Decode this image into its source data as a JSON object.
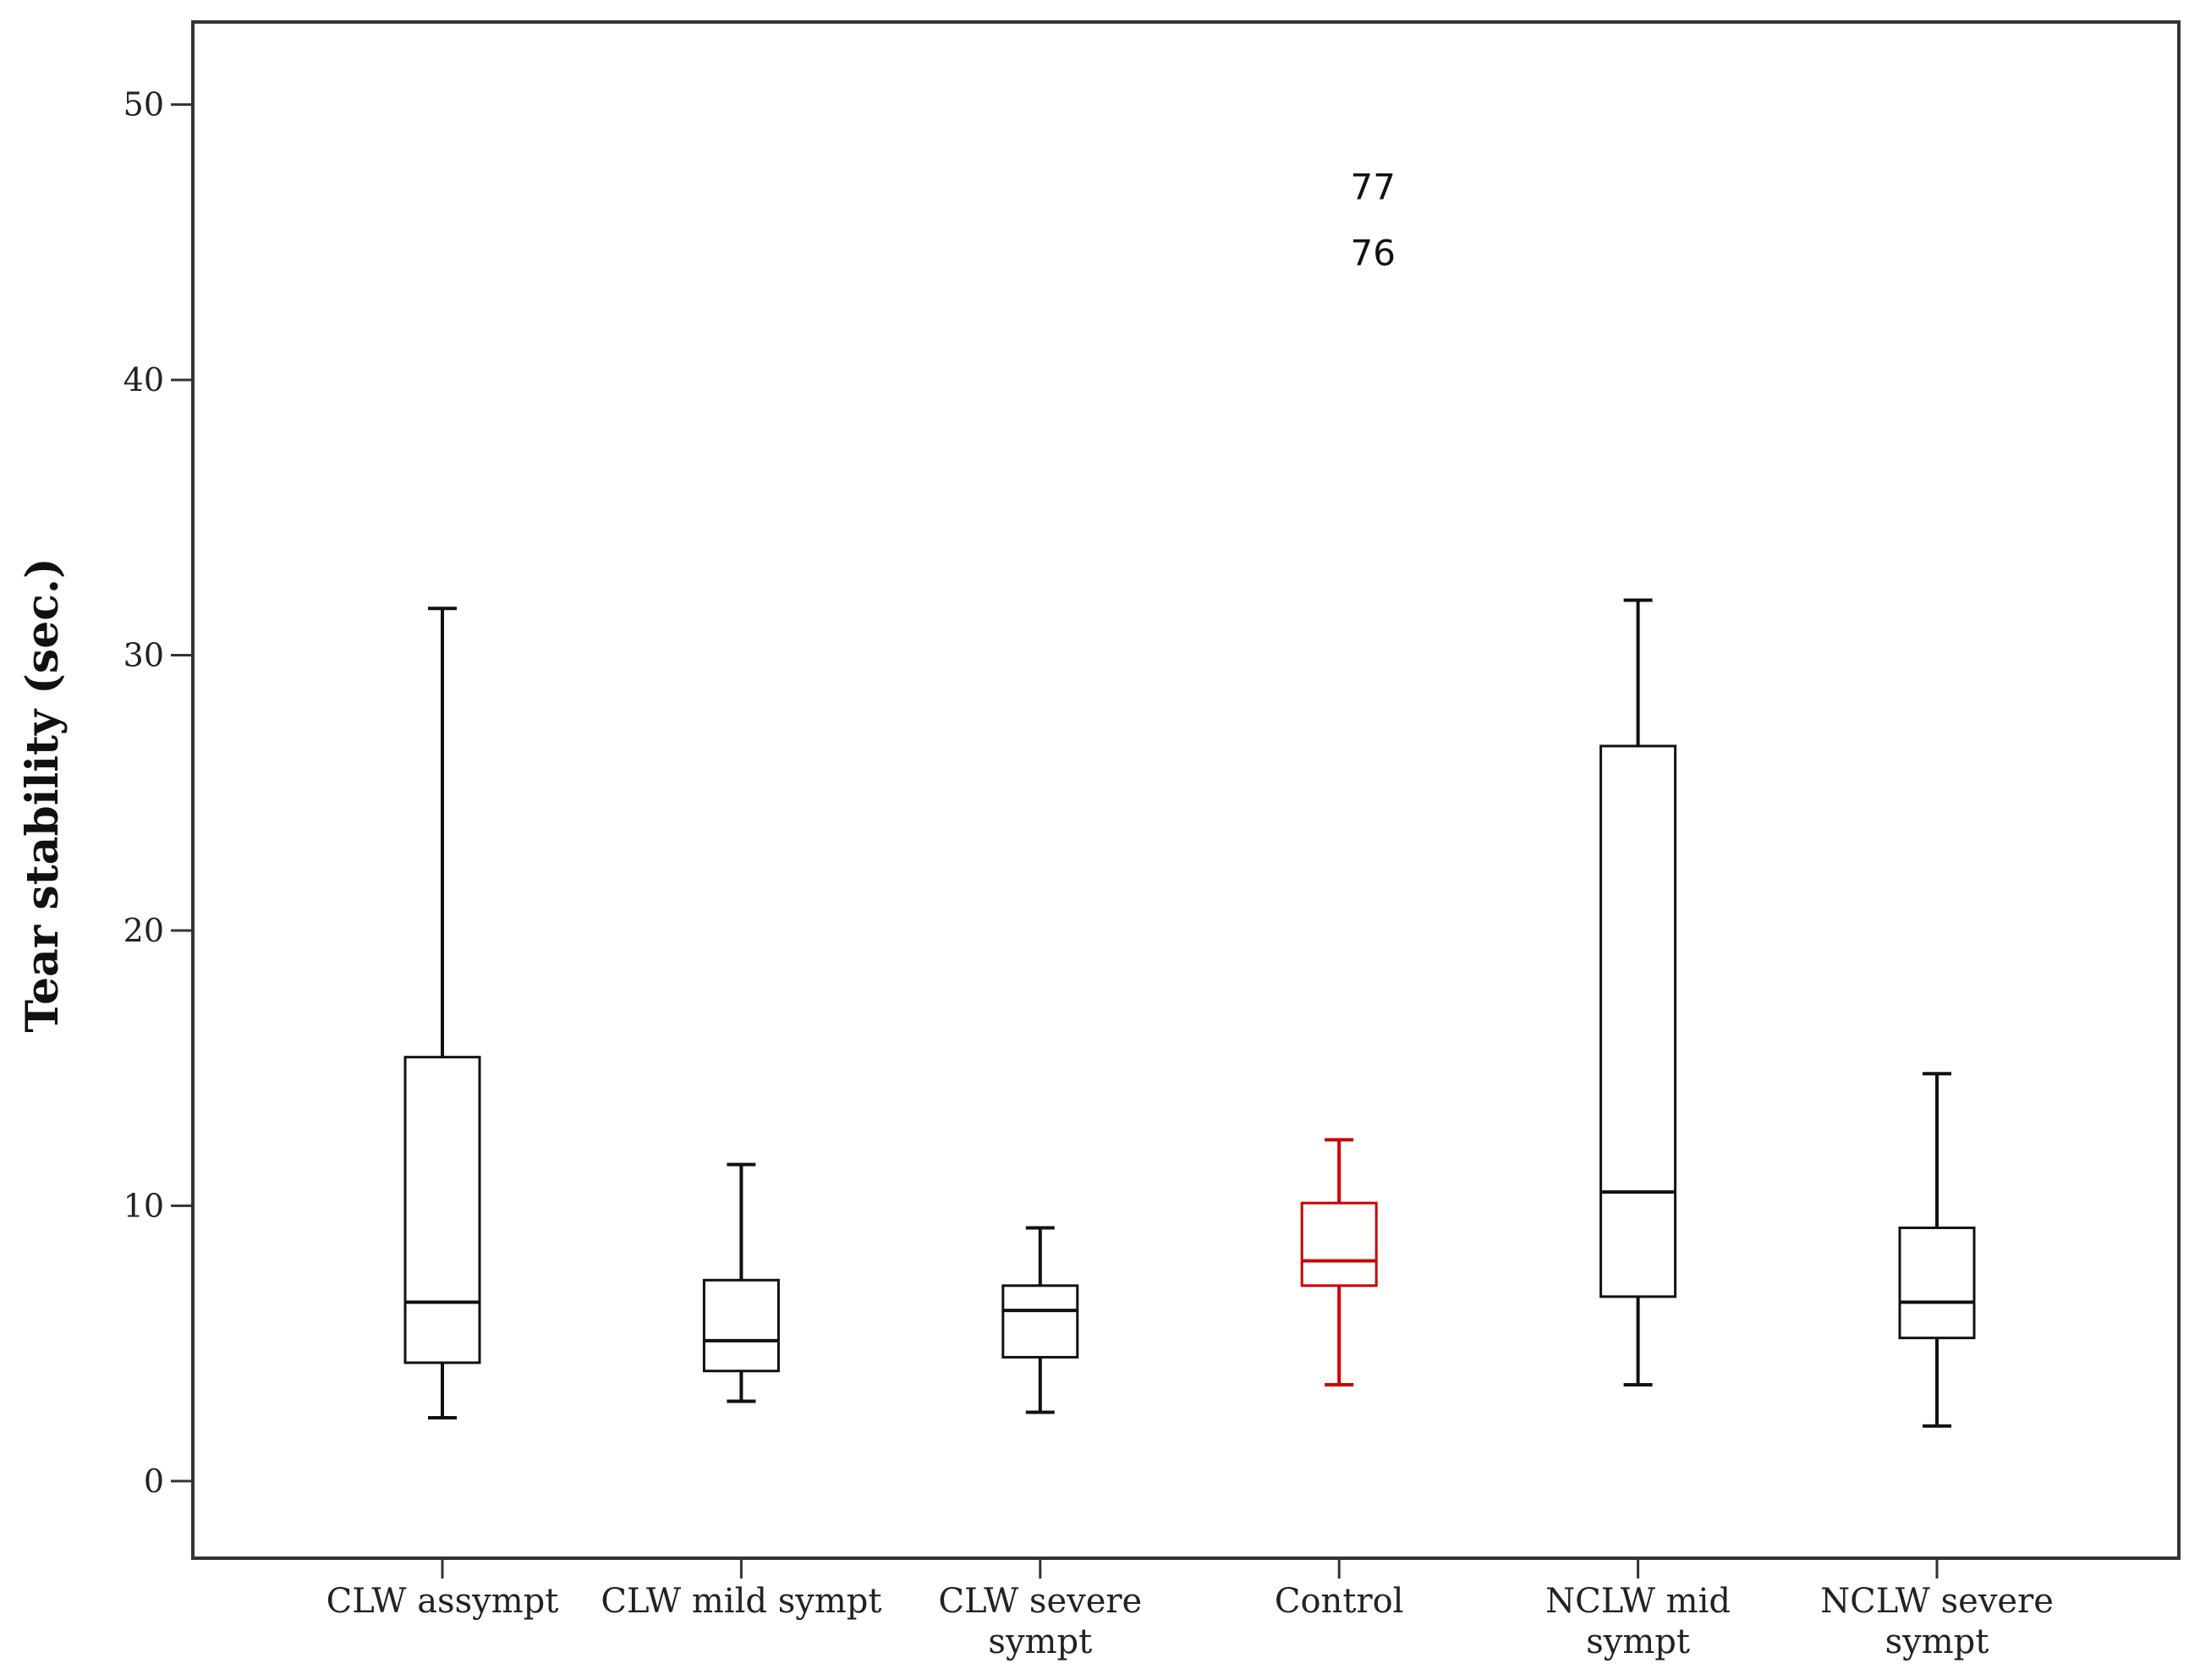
{
  "chart_data": {
    "type": "box",
    "ylabel": "Tear stability (sec.)",
    "xlabel": "",
    "title": "",
    "ylim": [
      -2.8,
      53
    ],
    "yticks": [
      0,
      10,
      20,
      30,
      40,
      50
    ],
    "ytick_labels": [
      "0",
      "10",
      "20",
      "30",
      "40",
      "50"
    ],
    "grid": false,
    "legend": "none",
    "colors": {
      "default": "#111111",
      "highlight": "#cc0000"
    },
    "categories": [
      {
        "lines": [
          "CLW assympt"
        ],
        "min": 2.3,
        "q1": 4.3,
        "median": 6.5,
        "q3": 15.4,
        "max": 31.7,
        "highlight": false
      },
      {
        "lines": [
          "CLW mild sympt"
        ],
        "min": 2.9,
        "q1": 4.0,
        "median": 5.1,
        "q3": 7.3,
        "max": 11.5,
        "highlight": false
      },
      {
        "lines": [
          "CLW severe",
          "sympt"
        ],
        "min": 2.5,
        "q1": 4.5,
        "median": 6.2,
        "q3": 7.1,
        "max": 9.2,
        "highlight": false
      },
      {
        "lines": [
          "Control"
        ],
        "min": 3.5,
        "q1": 7.1,
        "median": 8.0,
        "q3": 10.1,
        "max": 12.4,
        "highlight": true
      },
      {
        "lines": [
          "NCLW mid",
          "sympt"
        ],
        "min": 3.5,
        "q1": 6.7,
        "median": 10.5,
        "q3": 26.7,
        "max": 32.0,
        "highlight": false
      },
      {
        "lines": [
          "NCLW severe",
          "sympt"
        ],
        "min": 2.0,
        "q1": 5.2,
        "median": 6.5,
        "q3": 9.2,
        "max": 14.8,
        "highlight": false
      }
    ],
    "annotations": [
      {
        "text": "77",
        "category_index": 3,
        "y": 47.0
      },
      {
        "text": "76",
        "category_index": 3,
        "y": 44.6
      }
    ]
  }
}
